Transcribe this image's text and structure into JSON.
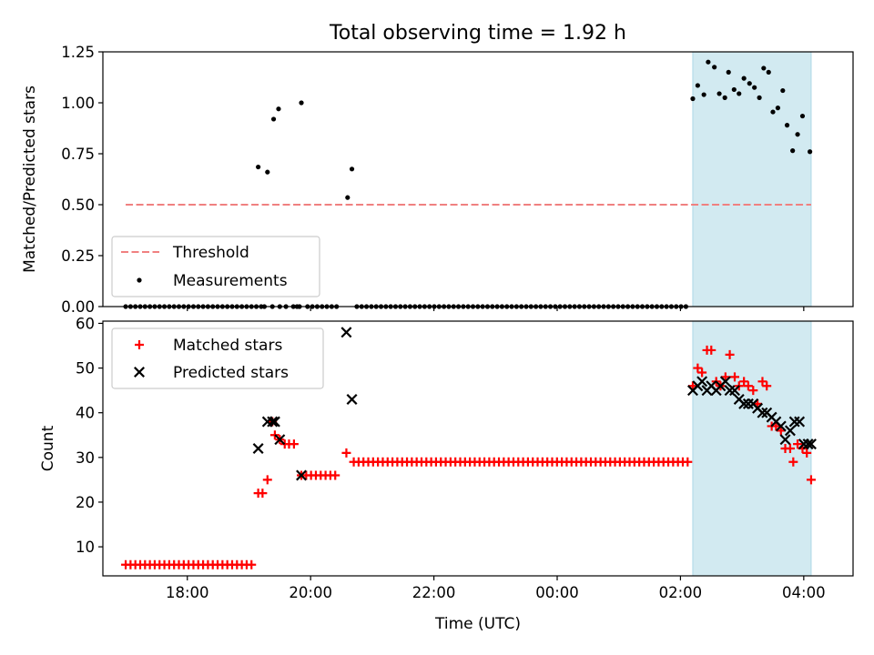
{
  "figure": {
    "title": "Total observing time = 1.92 h"
  },
  "chart_data": [
    {
      "type": "scatter",
      "ylabel": "Matched/Predicted stars",
      "ylim": [
        0,
        1.25
      ],
      "yticks": [
        "0.00",
        "0.25",
        "0.50",
        "0.75",
        "1.00",
        "1.25"
      ],
      "ytick_values": [
        0,
        0.25,
        0.5,
        0.75,
        1.0,
        1.25
      ],
      "xlim_hours": [
        16.63,
        28.8
      ],
      "xticks": [
        "18:00",
        "20:00",
        "22:00",
        "00:00",
        "02:00",
        "04:00"
      ],
      "xtick_values_hours": [
        18,
        20,
        22,
        24,
        26,
        28
      ],
      "shaded_span_hours": [
        26.2,
        28.12
      ],
      "shaded_color": "#add8e6",
      "threshold": {
        "name": "Threshold",
        "value": 0.5,
        "x_hours": [
          17.0,
          28.12
        ],
        "color": "#f08080"
      },
      "legend": {
        "location": "lower-left",
        "entries": [
          "Threshold",
          "Measurements"
        ]
      },
      "series": [
        {
          "name": "Measurements",
          "marker": "dot",
          "color": "#000000",
          "zero_runs": [
            {
              "start": 17.0,
              "end": 19.2,
              "step": 0.0785
            },
            {
              "start": 19.5,
              "end": 19.52,
              "step": 0.0785
            },
            {
              "start": 19.95,
              "end": 20.45,
              "step": 0.0785
            },
            {
              "start": 20.75,
              "end": 26.12,
              "step": 0.0785
            }
          ],
          "zero_points_x": [
            19.25,
            19.38,
            19.6,
            19.72,
            19.78,
            19.82
          ],
          "points": [
            [
              19.15,
              0.685
            ],
            [
              19.3,
              0.66
            ],
            [
              19.4,
              0.92
            ],
            [
              19.48,
              0.97
            ],
            [
              19.85,
              1.0
            ],
            [
              20.6,
              0.535
            ],
            [
              20.67,
              0.675
            ],
            [
              26.2,
              1.02
            ],
            [
              26.28,
              1.085
            ],
            [
              26.38,
              1.04
            ],
            [
              26.45,
              1.2
            ],
            [
              26.55,
              1.175
            ],
            [
              26.63,
              1.045
            ],
            [
              26.72,
              1.025
            ],
            [
              26.78,
              1.15
            ],
            [
              26.87,
              1.065
            ],
            [
              26.95,
              1.045
            ],
            [
              27.03,
              1.12
            ],
            [
              27.12,
              1.095
            ],
            [
              27.2,
              1.075
            ],
            [
              27.28,
              1.025
            ],
            [
              27.35,
              1.17
            ],
            [
              27.43,
              1.15
            ],
            [
              27.5,
              0.955
            ],
            [
              27.58,
              0.975
            ],
            [
              27.66,
              1.06
            ],
            [
              27.73,
              0.89
            ],
            [
              27.82,
              0.765
            ],
            [
              27.9,
              0.845
            ],
            [
              27.98,
              0.935
            ],
            [
              28.1,
              0.76
            ]
          ]
        }
      ]
    },
    {
      "type": "scatter",
      "ylabel": "Count",
      "xlabel": "Time (UTC)",
      "ylim": [
        3.5,
        60.5
      ],
      "yticks": [
        "10",
        "20",
        "30",
        "40",
        "50",
        "60"
      ],
      "ytick_values": [
        10,
        20,
        30,
        40,
        50,
        60
      ],
      "xlim_hours": [
        16.63,
        28.8
      ],
      "xticks": [
        "18:00",
        "20:00",
        "22:00",
        "00:00",
        "02:00",
        "04:00"
      ],
      "xtick_values_hours": [
        18,
        20,
        22,
        24,
        26,
        28
      ],
      "shaded_span_hours": [
        26.2,
        28.12
      ],
      "shaded_color": "#add8e6",
      "legend": {
        "location": "upper-left",
        "entries": [
          "Matched stars",
          "Predicted stars"
        ]
      },
      "series": [
        {
          "name": "Matched stars",
          "marker": "plus",
          "color": "#ff0000",
          "runs": [
            {
              "start": 17.0,
              "end": 19.1,
              "step": 0.0785,
              "value": 6
            },
            {
              "start": 19.85,
              "end": 20.45,
              "step": 0.0785,
              "value": 26
            },
            {
              "start": 20.7,
              "end": 26.12,
              "step": 0.0785,
              "value": 29
            }
          ],
          "points": [
            [
              19.15,
              22
            ],
            [
              19.22,
              22
            ],
            [
              19.3,
              25
            ],
            [
              19.38,
              38
            ],
            [
              19.42,
              35
            ],
            [
              19.5,
              34
            ],
            [
              19.58,
              33
            ],
            [
              19.65,
              33
            ],
            [
              19.73,
              33
            ],
            [
              20.58,
              31
            ],
            [
              26.2,
              46
            ],
            [
              26.28,
              50
            ],
            [
              26.35,
              49
            ],
            [
              26.43,
              54
            ],
            [
              26.5,
              54
            ],
            [
              26.58,
              47
            ],
            [
              26.65,
              46
            ],
            [
              26.73,
              48
            ],
            [
              26.8,
              53
            ],
            [
              26.88,
              48
            ],
            [
              26.95,
              46
            ],
            [
              27.03,
              47
            ],
            [
              27.1,
              46
            ],
            [
              27.18,
              45
            ],
            [
              27.25,
              42
            ],
            [
              27.33,
              47
            ],
            [
              27.4,
              46
            ],
            [
              27.48,
              37
            ],
            [
              27.55,
              37
            ],
            [
              27.63,
              36
            ],
            [
              27.7,
              32
            ],
            [
              27.78,
              32
            ],
            [
              27.83,
              29
            ],
            [
              27.9,
              33
            ],
            [
              27.98,
              32
            ],
            [
              28.05,
              31
            ],
            [
              28.12,
              25
            ]
          ]
        },
        {
          "name": "Predicted stars",
          "marker": "x",
          "color": "#000000",
          "points": [
            [
              19.15,
              32
            ],
            [
              19.3,
              38
            ],
            [
              19.38,
              38
            ],
            [
              19.42,
              38
            ],
            [
              19.5,
              34
            ],
            [
              19.85,
              26
            ],
            [
              20.58,
              58
            ],
            [
              20.67,
              43
            ],
            [
              26.2,
              45
            ],
            [
              26.28,
              46
            ],
            [
              26.35,
              47
            ],
            [
              26.43,
              45
            ],
            [
              26.5,
              46
            ],
            [
              26.58,
              45
            ],
            [
              26.65,
              46
            ],
            [
              26.73,
              47
            ],
            [
              26.8,
              45
            ],
            [
              26.88,
              45
            ],
            [
              26.95,
              43
            ],
            [
              27.03,
              42
            ],
            [
              27.1,
              42
            ],
            [
              27.18,
              42
            ],
            [
              27.25,
              41
            ],
            [
              27.33,
              40
            ],
            [
              27.4,
              40
            ],
            [
              27.48,
              39
            ],
            [
              27.55,
              38
            ],
            [
              27.63,
              37
            ],
            [
              27.7,
              34
            ],
            [
              27.78,
              36
            ],
            [
              27.85,
              38
            ],
            [
              27.93,
              38
            ],
            [
              28.0,
              33
            ],
            [
              28.07,
              33
            ],
            [
              28.12,
              33
            ]
          ]
        }
      ]
    }
  ]
}
